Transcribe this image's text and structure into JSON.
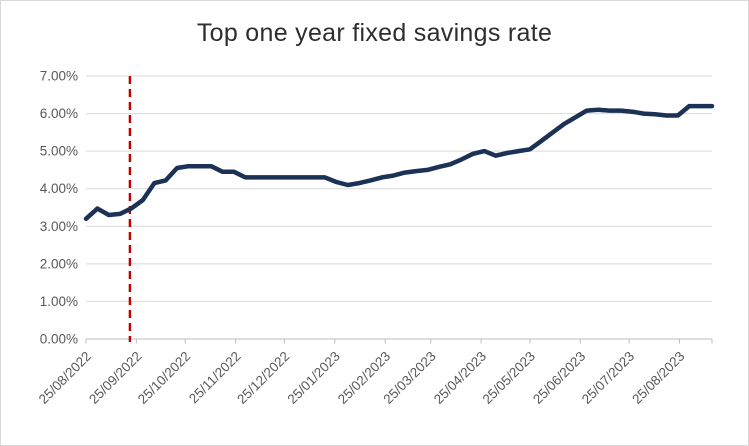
{
  "chart_data": {
    "type": "line",
    "title": "Top one year fixed savings rate",
    "xlabel": "",
    "ylabel": "",
    "ylim": [
      0,
      7
    ],
    "y_tick_labels": [
      "0.00%",
      "1.00%",
      "2.00%",
      "3.00%",
      "4.00%",
      "5.00%",
      "6.00%",
      "7.00%"
    ],
    "grid": "horizontal",
    "legend": "none",
    "x_range_days": [
      0,
      385
    ],
    "x_ticks": [
      {
        "label": "25/08/2022",
        "day": 0
      },
      {
        "label": "25/09/2022",
        "day": 31
      },
      {
        "label": "25/10/2022",
        "day": 61
      },
      {
        "label": "25/11/2022",
        "day": 92
      },
      {
        "label": "25/12/2022",
        "day": 122
      },
      {
        "label": "25/01/2023",
        "day": 153
      },
      {
        "label": "25/02/2023",
        "day": 184
      },
      {
        "label": "25/03/2023",
        "day": 212
      },
      {
        "label": "25/04/2023",
        "day": 243
      },
      {
        "label": "25/05/2023",
        "day": 273
      },
      {
        "label": "25/06/2023",
        "day": 304
      },
      {
        "label": "25/07/2023",
        "day": 334
      },
      {
        "label": "25/08/2023",
        "day": 365
      }
    ],
    "series": [
      {
        "name": "Top one year fixed savings rate (%)",
        "start_date": "25/08/2022",
        "interval_days": 7,
        "color": "#1c3156",
        "values": [
          3.2,
          3.47,
          3.3,
          3.33,
          3.48,
          3.7,
          4.15,
          4.22,
          4.55,
          4.6,
          4.6,
          4.6,
          4.45,
          4.45,
          4.3,
          4.3,
          4.3,
          4.3,
          4.3,
          4.3,
          4.3,
          4.3,
          4.18,
          4.1,
          4.15,
          4.22,
          4.3,
          4.35,
          4.43,
          4.47,
          4.5,
          4.58,
          4.65,
          4.78,
          4.93,
          5.0,
          4.88,
          4.95,
          5.0,
          5.05,
          5.27,
          5.5,
          5.72,
          5.9,
          6.08,
          6.1,
          6.08,
          6.08,
          6.05,
          6.0,
          5.98,
          5.95,
          5.95,
          6.2,
          6.2,
          6.2
        ]
      }
    ],
    "annotation": {
      "type": "vertical-dashed-line",
      "day": 27,
      "color": "#c00000"
    },
    "colors": {
      "line": "#1c3156",
      "marker_line": "#c00000",
      "gridline": "#d9d9d9",
      "axis_line": "#bfbfbf",
      "tick_label": "#595959",
      "title": "#2e2e2e",
      "background": "#ffffff",
      "card_border": "#d9d9d9"
    }
  }
}
